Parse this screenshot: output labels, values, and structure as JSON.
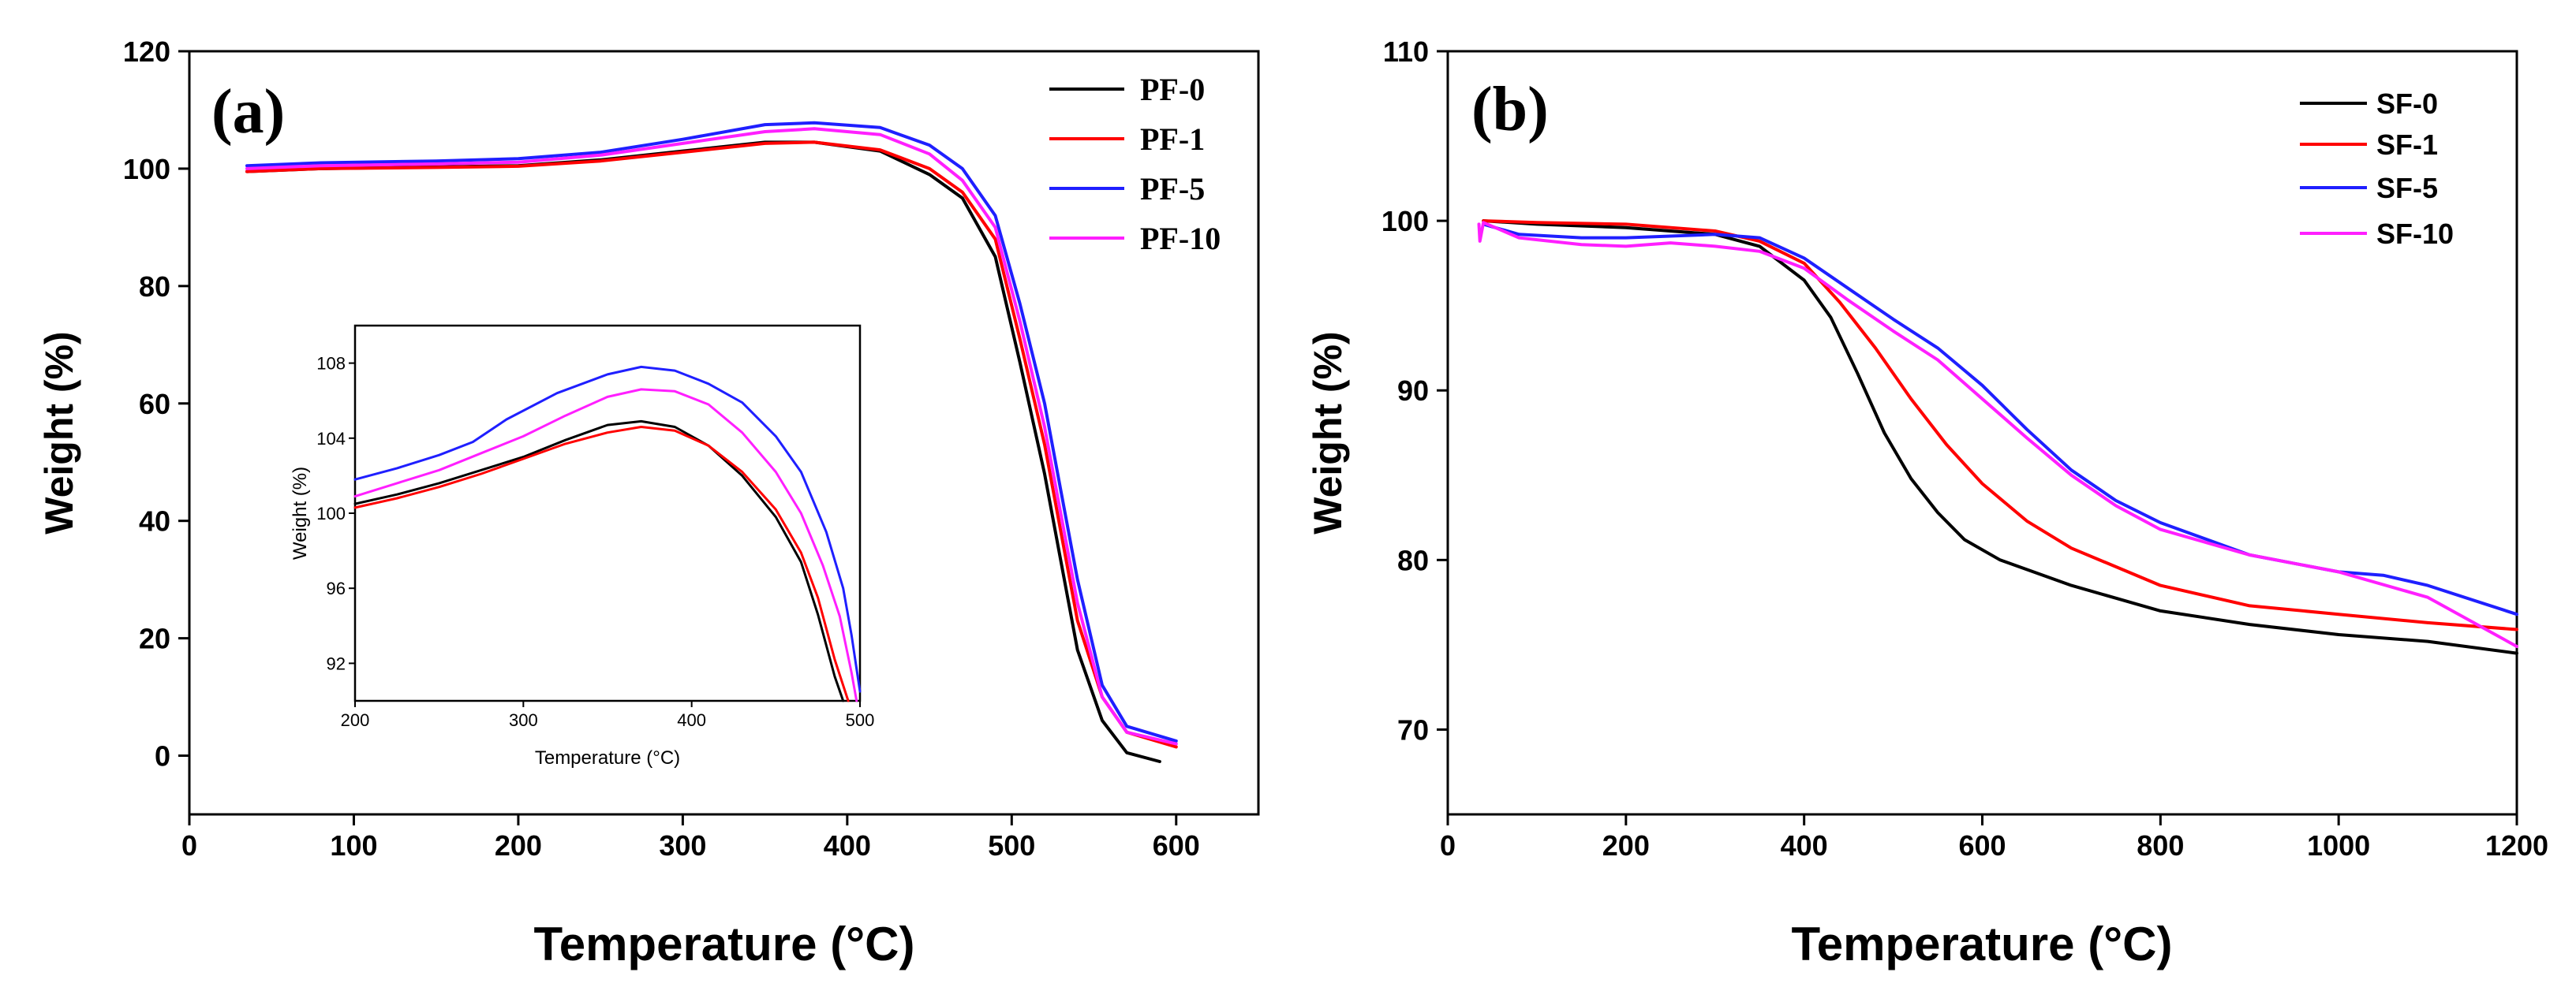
{
  "colors": {
    "black": "#000000",
    "red": "#ff0000",
    "blue": "#1f1fff",
    "magenta": "#ff1fff"
  },
  "chart_data": [
    {
      "id": "a",
      "panel_label": "(a)",
      "type": "line",
      "title": "",
      "xlabel": "Temperature (°C)",
      "ylabel": "Weight (%)",
      "xlim": [
        0,
        650
      ],
      "ylim": [
        -10,
        120
      ],
      "xticks": [
        0,
        100,
        200,
        300,
        400,
        500,
        600
      ],
      "yticks": [
        0,
        20,
        40,
        60,
        80,
        100,
        120
      ],
      "legend_position": "top-right",
      "series": [
        {
          "name": "PF-0",
          "color": "#000000",
          "points": [
            [
              35,
              99.5
            ],
            [
              80,
              100
            ],
            [
              150,
              100.3
            ],
            [
              200,
              100.5
            ],
            [
              250,
              101.5
            ],
            [
              300,
              103
            ],
            [
              350,
              104.5
            ],
            [
              380,
              104.5
            ],
            [
              420,
              103
            ],
            [
              450,
              99
            ],
            [
              470,
              95
            ],
            [
              490,
              85
            ],
            [
              505,
              67
            ],
            [
              520,
              48
            ],
            [
              530,
              33
            ],
            [
              540,
              18
            ],
            [
              555,
              6
            ],
            [
              570,
              0.5
            ],
            [
              590,
              -1
            ]
          ]
        },
        {
          "name": "PF-1",
          "color": "#ff0000",
          "points": [
            [
              35,
              99.5
            ],
            [
              80,
              100
            ],
            [
              150,
              100.2
            ],
            [
              200,
              100.4
            ],
            [
              250,
              101.3
            ],
            [
              300,
              102.8
            ],
            [
              350,
              104.3
            ],
            [
              380,
              104.5
            ],
            [
              420,
              103.2
            ],
            [
              450,
              100
            ],
            [
              470,
              96
            ],
            [
              490,
              88
            ],
            [
              505,
              71
            ],
            [
              520,
              53
            ],
            [
              530,
              38
            ],
            [
              540,
              23
            ],
            [
              555,
              10
            ],
            [
              570,
              4
            ],
            [
              600,
              1.5
            ]
          ]
        },
        {
          "name": "PF-5",
          "color": "#1f1fff",
          "points": [
            [
              35,
              100.5
            ],
            [
              80,
              101
            ],
            [
              150,
              101.3
            ],
            [
              200,
              101.7
            ],
            [
              250,
              102.8
            ],
            [
              300,
              105
            ],
            [
              350,
              107.5
            ],
            [
              380,
              107.8
            ],
            [
              420,
              107
            ],
            [
              450,
              104
            ],
            [
              470,
              100
            ],
            [
              490,
              92
            ],
            [
              505,
              77
            ],
            [
              520,
              60
            ],
            [
              530,
              45
            ],
            [
              540,
              30
            ],
            [
              555,
              12
            ],
            [
              570,
              5
            ],
            [
              600,
              2.5
            ]
          ]
        },
        {
          "name": "PF-10",
          "color": "#ff1fff",
          "points": [
            [
              35,
              100
            ],
            [
              80,
              100.5
            ],
            [
              150,
              100.8
            ],
            [
              200,
              101.1
            ],
            [
              250,
              102.3
            ],
            [
              300,
              104.3
            ],
            [
              350,
              106.3
            ],
            [
              380,
              106.8
            ],
            [
              420,
              105.8
            ],
            [
              450,
              102.5
            ],
            [
              470,
              98
            ],
            [
              490,
              90
            ],
            [
              505,
              74
            ],
            [
              520,
              56
            ],
            [
              530,
              41
            ],
            [
              540,
              26
            ],
            [
              555,
              10
            ],
            [
              570,
              4
            ],
            [
              600,
              2
            ]
          ]
        }
      ],
      "inset": {
        "type": "line",
        "xlabel": "Temperature (°C)",
        "ylabel": "Weight (%)",
        "xlim": [
          200,
          500
        ],
        "ylim": [
          90,
          110
        ],
        "xticks": [
          200,
          300,
          400,
          500
        ],
        "yticks": [
          92,
          96,
          100,
          104,
          108
        ],
        "series": [
          {
            "name": "PF-0",
            "color": "#000000",
            "points": [
              [
                200,
                100.5
              ],
              [
                225,
                101
              ],
              [
                250,
                101.6
              ],
              [
                275,
                102.3
              ],
              [
                300,
                103
              ],
              [
                325,
                103.9
              ],
              [
                350,
                104.7
              ],
              [
                370,
                104.9
              ],
              [
                390,
                104.6
              ],
              [
                410,
                103.6
              ],
              [
                430,
                102
              ],
              [
                450,
                99.8
              ],
              [
                465,
                97.4
              ],
              [
                475,
                94.6
              ],
              [
                485,
                91.3
              ],
              [
                490,
                90
              ]
            ]
          },
          {
            "name": "PF-1",
            "color": "#ff0000",
            "points": [
              [
                200,
                100.3
              ],
              [
                225,
                100.8
              ],
              [
                250,
                101.4
              ],
              [
                275,
                102.1
              ],
              [
                300,
                102.9
              ],
              [
                325,
                103.7
              ],
              [
                350,
                104.3
              ],
              [
                370,
                104.6
              ],
              [
                390,
                104.4
              ],
              [
                410,
                103.6
              ],
              [
                430,
                102.2
              ],
              [
                450,
                100.2
              ],
              [
                465,
                97.9
              ],
              [
                475,
                95.5
              ],
              [
                485,
                92.2
              ],
              [
                493,
                90
              ]
            ]
          },
          {
            "name": "PF-5",
            "color": "#1f1fff",
            "points": [
              [
                200,
                101.8
              ],
              [
                225,
                102.4
              ],
              [
                250,
                103.1
              ],
              [
                270,
                103.8
              ],
              [
                290,
                105
              ],
              [
                320,
                106.4
              ],
              [
                350,
                107.4
              ],
              [
                370,
                107.8
              ],
              [
                390,
                107.6
              ],
              [
                410,
                106.9
              ],
              [
                430,
                105.9
              ],
              [
                450,
                104.1
              ],
              [
                465,
                102.2
              ],
              [
                480,
                99
              ],
              [
                490,
                96
              ],
              [
                495,
                93.5
              ],
              [
                500,
                90.5
              ]
            ]
          },
          {
            "name": "PF-10",
            "color": "#ff1fff",
            "points": [
              [
                200,
                100.9
              ],
              [
                225,
                101.6
              ],
              [
                250,
                102.3
              ],
              [
                275,
                103.2
              ],
              [
                300,
                104.1
              ],
              [
                325,
                105.2
              ],
              [
                350,
                106.2
              ],
              [
                370,
                106.6
              ],
              [
                390,
                106.5
              ],
              [
                410,
                105.8
              ],
              [
                430,
                104.3
              ],
              [
                450,
                102.2
              ],
              [
                465,
                100
              ],
              [
                478,
                97.2
              ],
              [
                488,
                94.5
              ],
              [
                495,
                91.5
              ],
              [
                498,
                90
              ]
            ]
          }
        ]
      }
    },
    {
      "id": "b",
      "panel_label": "(b)",
      "type": "line",
      "title": "",
      "xlabel": "Temperature (°C)",
      "ylabel": "Weight (%)",
      "xlim": [
        0,
        1200
      ],
      "ylim": [
        65,
        110
      ],
      "xticks": [
        0,
        200,
        400,
        600,
        800,
        1000,
        1200
      ],
      "yticks": [
        70,
        80,
        90,
        100,
        110
      ],
      "legend_position": "top-right",
      "series": [
        {
          "name": "SF-0",
          "color": "#000000",
          "points": [
            [
              40,
              100
            ],
            [
              100,
              99.8
            ],
            [
              200,
              99.6
            ],
            [
              300,
              99.2
            ],
            [
              350,
              98.5
            ],
            [
              400,
              96.5
            ],
            [
              430,
              94.3
            ],
            [
              460,
              91
            ],
            [
              490,
              87.5
            ],
            [
              520,
              84.8
            ],
            [
              550,
              82.8
            ],
            [
              580,
              81.2
            ],
            [
              620,
              80
            ],
            [
              700,
              78.5
            ],
            [
              800,
              77
            ],
            [
              900,
              76.2
            ],
            [
              1000,
              75.6
            ],
            [
              1100,
              75.2
            ],
            [
              1200,
              74.5
            ]
          ]
        },
        {
          "name": "SF-1",
          "color": "#ff0000",
          "points": [
            [
              40,
              100
            ],
            [
              100,
              99.9
            ],
            [
              200,
              99.8
            ],
            [
              300,
              99.4
            ],
            [
              350,
              98.8
            ],
            [
              400,
              97.5
            ],
            [
              440,
              95.2
            ],
            [
              480,
              92.5
            ],
            [
              520,
              89.5
            ],
            [
              560,
              86.8
            ],
            [
              600,
              84.5
            ],
            [
              650,
              82.3
            ],
            [
              700,
              80.7
            ],
            [
              800,
              78.5
            ],
            [
              900,
              77.3
            ],
            [
              1000,
              76.8
            ],
            [
              1100,
              76.3
            ],
            [
              1200,
              75.9
            ]
          ]
        },
        {
          "name": "SF-5",
          "color": "#1f1fff",
          "points": [
            [
              40,
              99.8
            ],
            [
              80,
              99.2
            ],
            [
              150,
              99
            ],
            [
              200,
              99
            ],
            [
              300,
              99.2
            ],
            [
              350,
              99
            ],
            [
              400,
              97.8
            ],
            [
              450,
              96
            ],
            [
              500,
              94.2
            ],
            [
              550,
              92.5
            ],
            [
              600,
              90.3
            ],
            [
              650,
              87.7
            ],
            [
              700,
              85.3
            ],
            [
              750,
              83.5
            ],
            [
              800,
              82.2
            ],
            [
              900,
              80.3
            ],
            [
              1000,
              79.3
            ],
            [
              1050,
              79.1
            ],
            [
              1100,
              78.5
            ],
            [
              1200,
              76.8
            ]
          ]
        },
        {
          "name": "SF-10",
          "color": "#ff1fff",
          "points": [
            [
              35,
              99.8
            ],
            [
              36,
              98.8
            ],
            [
              40,
              99.9
            ],
            [
              80,
              99
            ],
            [
              150,
              98.6
            ],
            [
              200,
              98.5
            ],
            [
              250,
              98.7
            ],
            [
              300,
              98.5
            ],
            [
              350,
              98.2
            ],
            [
              400,
              97.2
            ],
            [
              450,
              95.3
            ],
            [
              500,
              93.5
            ],
            [
              550,
              91.8
            ],
            [
              600,
              89.5
            ],
            [
              650,
              87.2
            ],
            [
              700,
              85
            ],
            [
              750,
              83.2
            ],
            [
              800,
              81.8
            ],
            [
              900,
              80.3
            ],
            [
              1000,
              79.3
            ],
            [
              1100,
              77.8
            ],
            [
              1200,
              74.9
            ]
          ]
        }
      ]
    }
  ]
}
